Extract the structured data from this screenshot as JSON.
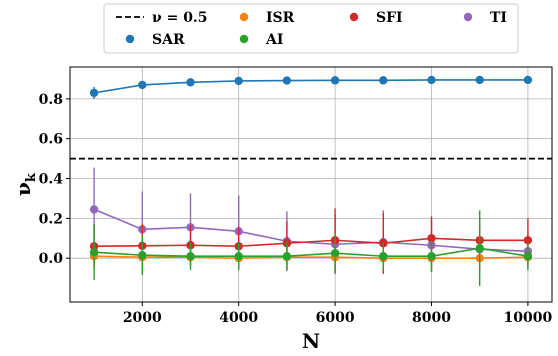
{
  "chart_data": {
    "type": "line",
    "xlabel": "N",
    "ylabel_main": "ν",
    "ylabel_sub": "k",
    "x": [
      1000,
      2000,
      3000,
      4000,
      5000,
      6000,
      7000,
      8000,
      9000,
      10000
    ],
    "xlim": [
      500,
      10500
    ],
    "ylim": [
      -0.22,
      0.96
    ],
    "xticks": [
      2000,
      4000,
      6000,
      8000,
      10000
    ],
    "xtick_labels": [
      "2000",
      "4000",
      "6000",
      "8000",
      "10000"
    ],
    "yticks": [
      0.0,
      0.2,
      0.4,
      0.6,
      0.8
    ],
    "ytick_labels": [
      "0.0",
      "0.2",
      "0.4",
      "0.6",
      "0.8"
    ],
    "grid": true,
    "legend_position": "top-center",
    "reference_line": {
      "label": "ν = 0.5",
      "y": 0.5,
      "color": "#000000"
    },
    "series": [
      {
        "name": "SAR",
        "color": "#1f77b4",
        "values": [
          0.83,
          0.87,
          0.883,
          0.89,
          0.892,
          0.893,
          0.893,
          0.895,
          0.895,
          0.895
        ],
        "errors": [
          0.03,
          0.015,
          0.012,
          0.01,
          0.01,
          0.008,
          0.008,
          0.008,
          0.008,
          0.008
        ]
      },
      {
        "name": "ISR",
        "color": "#ff7f0e",
        "values": [
          0.01,
          0.005,
          0.005,
          0.0,
          0.005,
          0.005,
          0.0,
          0.0,
          0.0,
          0.005
        ],
        "errors": [
          0.06,
          0.08,
          0.05,
          0.05,
          0.06,
          0.08,
          0.05,
          0.05,
          0.05,
          0.04
        ]
      },
      {
        "name": "AI",
        "color": "#2ca02c",
        "values": [
          0.03,
          0.015,
          0.01,
          0.01,
          0.01,
          0.025,
          0.01,
          0.01,
          0.05,
          0.01
        ],
        "errors": [
          0.14,
          0.1,
          0.07,
          0.07,
          0.07,
          0.1,
          0.07,
          0.08,
          0.19,
          0.07
        ]
      },
      {
        "name": "SFI",
        "color": "#d62728",
        "values": [
          0.06,
          0.062,
          0.065,
          0.06,
          0.075,
          0.09,
          0.075,
          0.1,
          0.09,
          0.09
        ],
        "errors": [
          0.11,
          0.11,
          0.1,
          0.1,
          0.11,
          0.16,
          0.15,
          0.11,
          0.11,
          0.11
        ]
      },
      {
        "name": "TI",
        "color": "#9467bd",
        "values": [
          0.245,
          0.145,
          0.155,
          0.135,
          0.085,
          0.07,
          0.08,
          0.065,
          0.045,
          0.035
        ],
        "errors": [
          0.21,
          0.19,
          0.17,
          0.18,
          0.15,
          0.15,
          0.16,
          0.13,
          0.1,
          0.09
        ]
      }
    ]
  }
}
